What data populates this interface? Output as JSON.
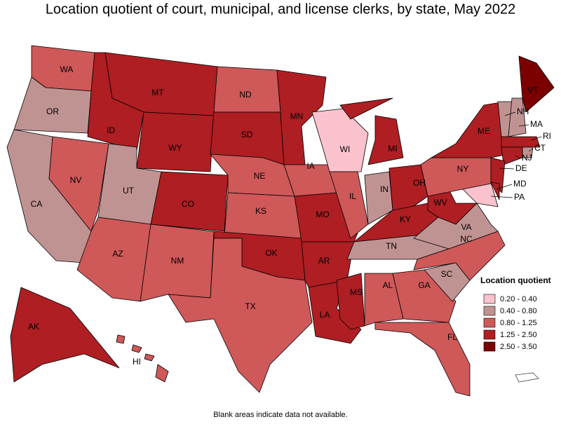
{
  "title": "Location quotient of court, municipal, and license clerks, by state, May 2022",
  "footnote": "Blank areas indicate data not available.",
  "legend": {
    "title": "Location quotient",
    "bins": [
      {
        "label": "0.20 - 0.40",
        "color": "#f9c2cc"
      },
      {
        "label": "0.40 - 0.80",
        "color": "#c09393"
      },
      {
        "label": "0.80 - 1.25",
        "color": "#cf5858"
      },
      {
        "label": "1.25 - 2.50",
        "color": "#ae1e22"
      },
      {
        "label": "2.50 - 3.50",
        "color": "#7b0000"
      }
    ]
  },
  "states": [
    {
      "label": "WA",
      "bin": 2
    },
    {
      "label": "OR",
      "bin": 1
    },
    {
      "label": "CA",
      "bin": 1
    },
    {
      "label": "NV",
      "bin": 2
    },
    {
      "label": "ID",
      "bin": 3
    },
    {
      "label": "MT",
      "bin": 3
    },
    {
      "label": "WY",
      "bin": 3
    },
    {
      "label": "UT",
      "bin": 1
    },
    {
      "label": "CO",
      "bin": 3
    },
    {
      "label": "AZ",
      "bin": 2
    },
    {
      "label": "NM",
      "bin": 2
    },
    {
      "label": "ND",
      "bin": 2
    },
    {
      "label": "SD",
      "bin": 3
    },
    {
      "label": "NE",
      "bin": 2
    },
    {
      "label": "KS",
      "bin": 2
    },
    {
      "label": "OK",
      "bin": 3
    },
    {
      "label": "TX",
      "bin": 2
    },
    {
      "label": "MN",
      "bin": 3
    },
    {
      "label": "IA",
      "bin": 2
    },
    {
      "label": "MO",
      "bin": 3
    },
    {
      "label": "AR",
      "bin": 3
    },
    {
      "label": "LA",
      "bin": 3
    },
    {
      "label": "WI",
      "bin": 0
    },
    {
      "label": "IL",
      "bin": 2
    },
    {
      "label": "MI",
      "bin": 3
    },
    {
      "label": "IN",
      "bin": 1
    },
    {
      "label": "OH",
      "bin": 3
    },
    {
      "label": "KY",
      "bin": 3
    },
    {
      "label": "TN",
      "bin": 1
    },
    {
      "label": "MS",
      "bin": 3
    },
    {
      "label": "AL",
      "bin": 2
    },
    {
      "label": "GA",
      "bin": 2
    },
    {
      "label": "FL",
      "bin": 2
    },
    {
      "label": "SC",
      "bin": 1
    },
    {
      "label": "NC",
      "bin": 2
    },
    {
      "label": "VA",
      "bin": 1
    },
    {
      "label": "WV",
      "bin": 3
    },
    {
      "label": "PA",
      "bin": 0
    },
    {
      "label": "NY",
      "bin": 2
    },
    {
      "label": "ME",
      "bin": 3
    },
    {
      "label": "VT",
      "bin": 4
    },
    {
      "label": "NH",
      "bin": 1
    },
    {
      "label": "MA",
      "bin": 1
    },
    {
      "label": "RI",
      "bin": 3
    },
    {
      "label": "CT",
      "bin": 1
    },
    {
      "label": "NJ",
      "bin": 3
    },
    {
      "label": "DE",
      "bin": 3
    },
    {
      "label": "MD",
      "bin": 3
    },
    {
      "label": "AK",
      "bin": 3
    },
    {
      "label": "HI",
      "bin": 2
    }
  ]
}
